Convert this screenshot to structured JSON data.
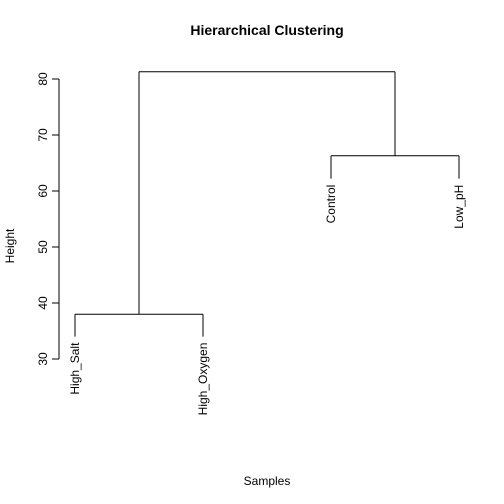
{
  "chart_data": {
    "type": "dendrogram",
    "title": "Hierarchical Clustering",
    "xlabel": "Samples",
    "ylabel": "Height",
    "ylim": [
      30,
      80
    ],
    "yticks": [
      30,
      40,
      50,
      60,
      70,
      80
    ],
    "yticks_labels": [
      "30",
      "40",
      "50",
      "60",
      "70",
      "80"
    ],
    "leaves": [
      {
        "label": "High_Salt",
        "position": 1,
        "label_height": 34
      },
      {
        "label": "High_Oxygen",
        "position": 2,
        "label_height": 34
      },
      {
        "label": "Control",
        "position": 3,
        "label_height": 62.2
      },
      {
        "label": "Low_pH",
        "position": 4,
        "label_height": 62.2
      }
    ],
    "merges": [
      {
        "left": "leaf:0",
        "right": "leaf:1",
        "height": 38.0
      },
      {
        "left": "leaf:2",
        "right": "leaf:3",
        "height": 66.3
      },
      {
        "left": "merge:0",
        "right": "merge:1",
        "height": 81.3
      }
    ],
    "grid": false,
    "legend": "none"
  }
}
